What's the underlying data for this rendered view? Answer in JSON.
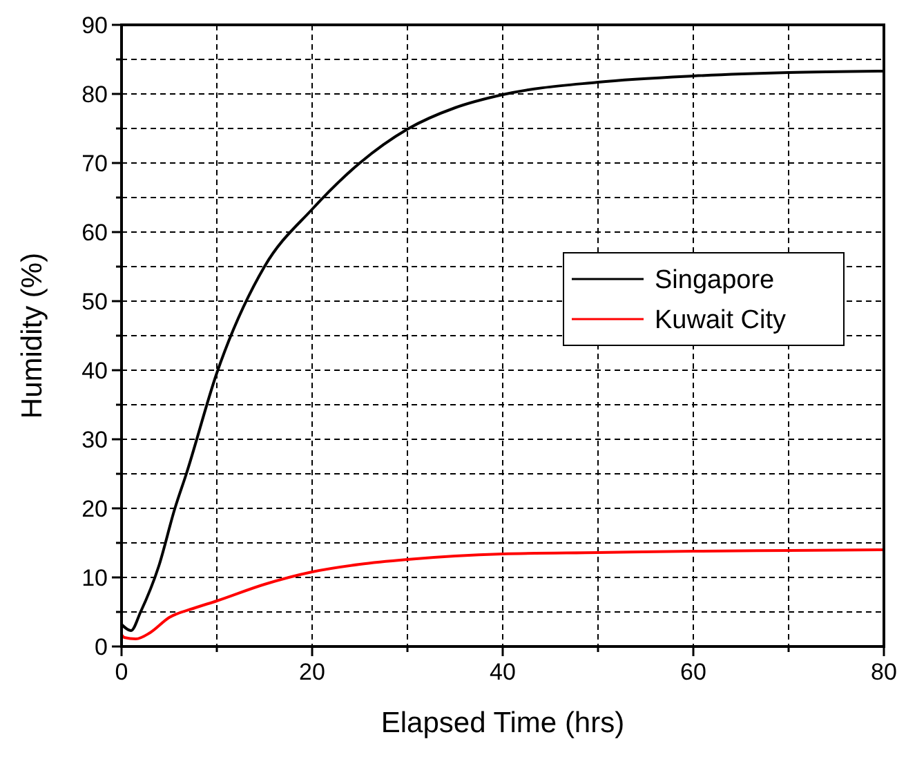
{
  "chart_data": {
    "type": "line",
    "xlabel": "Elapsed Time (hrs)",
    "ylabel": "Humidity (%)",
    "xlim": [
      0,
      80
    ],
    "ylim": [
      0,
      90
    ],
    "xticks": [
      0,
      {
        "value": 10,
        "label": null
      },
      20,
      {
        "value": 30,
        "label": null
      },
      40,
      {
        "value": 50,
        "label": null
      },
      60,
      {
        "value": 70,
        "label": null
      },
      80
    ],
    "yticks": [
      0,
      {
        "value": 5,
        "label": null
      },
      10,
      {
        "value": 15,
        "label": null
      },
      20,
      {
        "value": 25,
        "label": null
      },
      30,
      {
        "value": 35,
        "label": null
      },
      40,
      {
        "value": 45,
        "label": null
      },
      50,
      {
        "value": 55,
        "label": null
      },
      60,
      {
        "value": 65,
        "label": null
      },
      70,
      {
        "value": 75,
        "label": null
      },
      80,
      {
        "value": 85,
        "label": null
      },
      90
    ],
    "grid": true,
    "legend": "right",
    "line_style": "solid",
    "marker": "none",
    "series": [
      {
        "name": "Singapore",
        "color": "#000000",
        "x": [
          0,
          0.5,
          1,
          2,
          3.9,
          5.6,
          6.8,
          10,
          15,
          20,
          25,
          30,
          35,
          40,
          50,
          60,
          70,
          80
        ],
        "values": [
          3.2,
          2.6,
          2.3,
          5,
          11.6,
          20,
          25,
          39.6,
          55,
          63.3,
          70,
          74.9,
          78,
          79.9,
          81.7,
          82.6,
          83.1,
          83.3
        ]
      },
      {
        "name": "Kuwait City",
        "color": "#ff0000",
        "x": [
          0,
          0.3,
          1.5,
          3,
          5,
          7.5,
          10,
          15,
          20,
          25,
          30,
          40,
          50,
          60,
          70,
          80
        ],
        "values": [
          1.7,
          1.3,
          1.1,
          2,
          4.2,
          5.5,
          6.6,
          9.0,
          10.8,
          11.9,
          12.6,
          13.4,
          13.6,
          13.8,
          13.9,
          14
        ]
      }
    ]
  }
}
